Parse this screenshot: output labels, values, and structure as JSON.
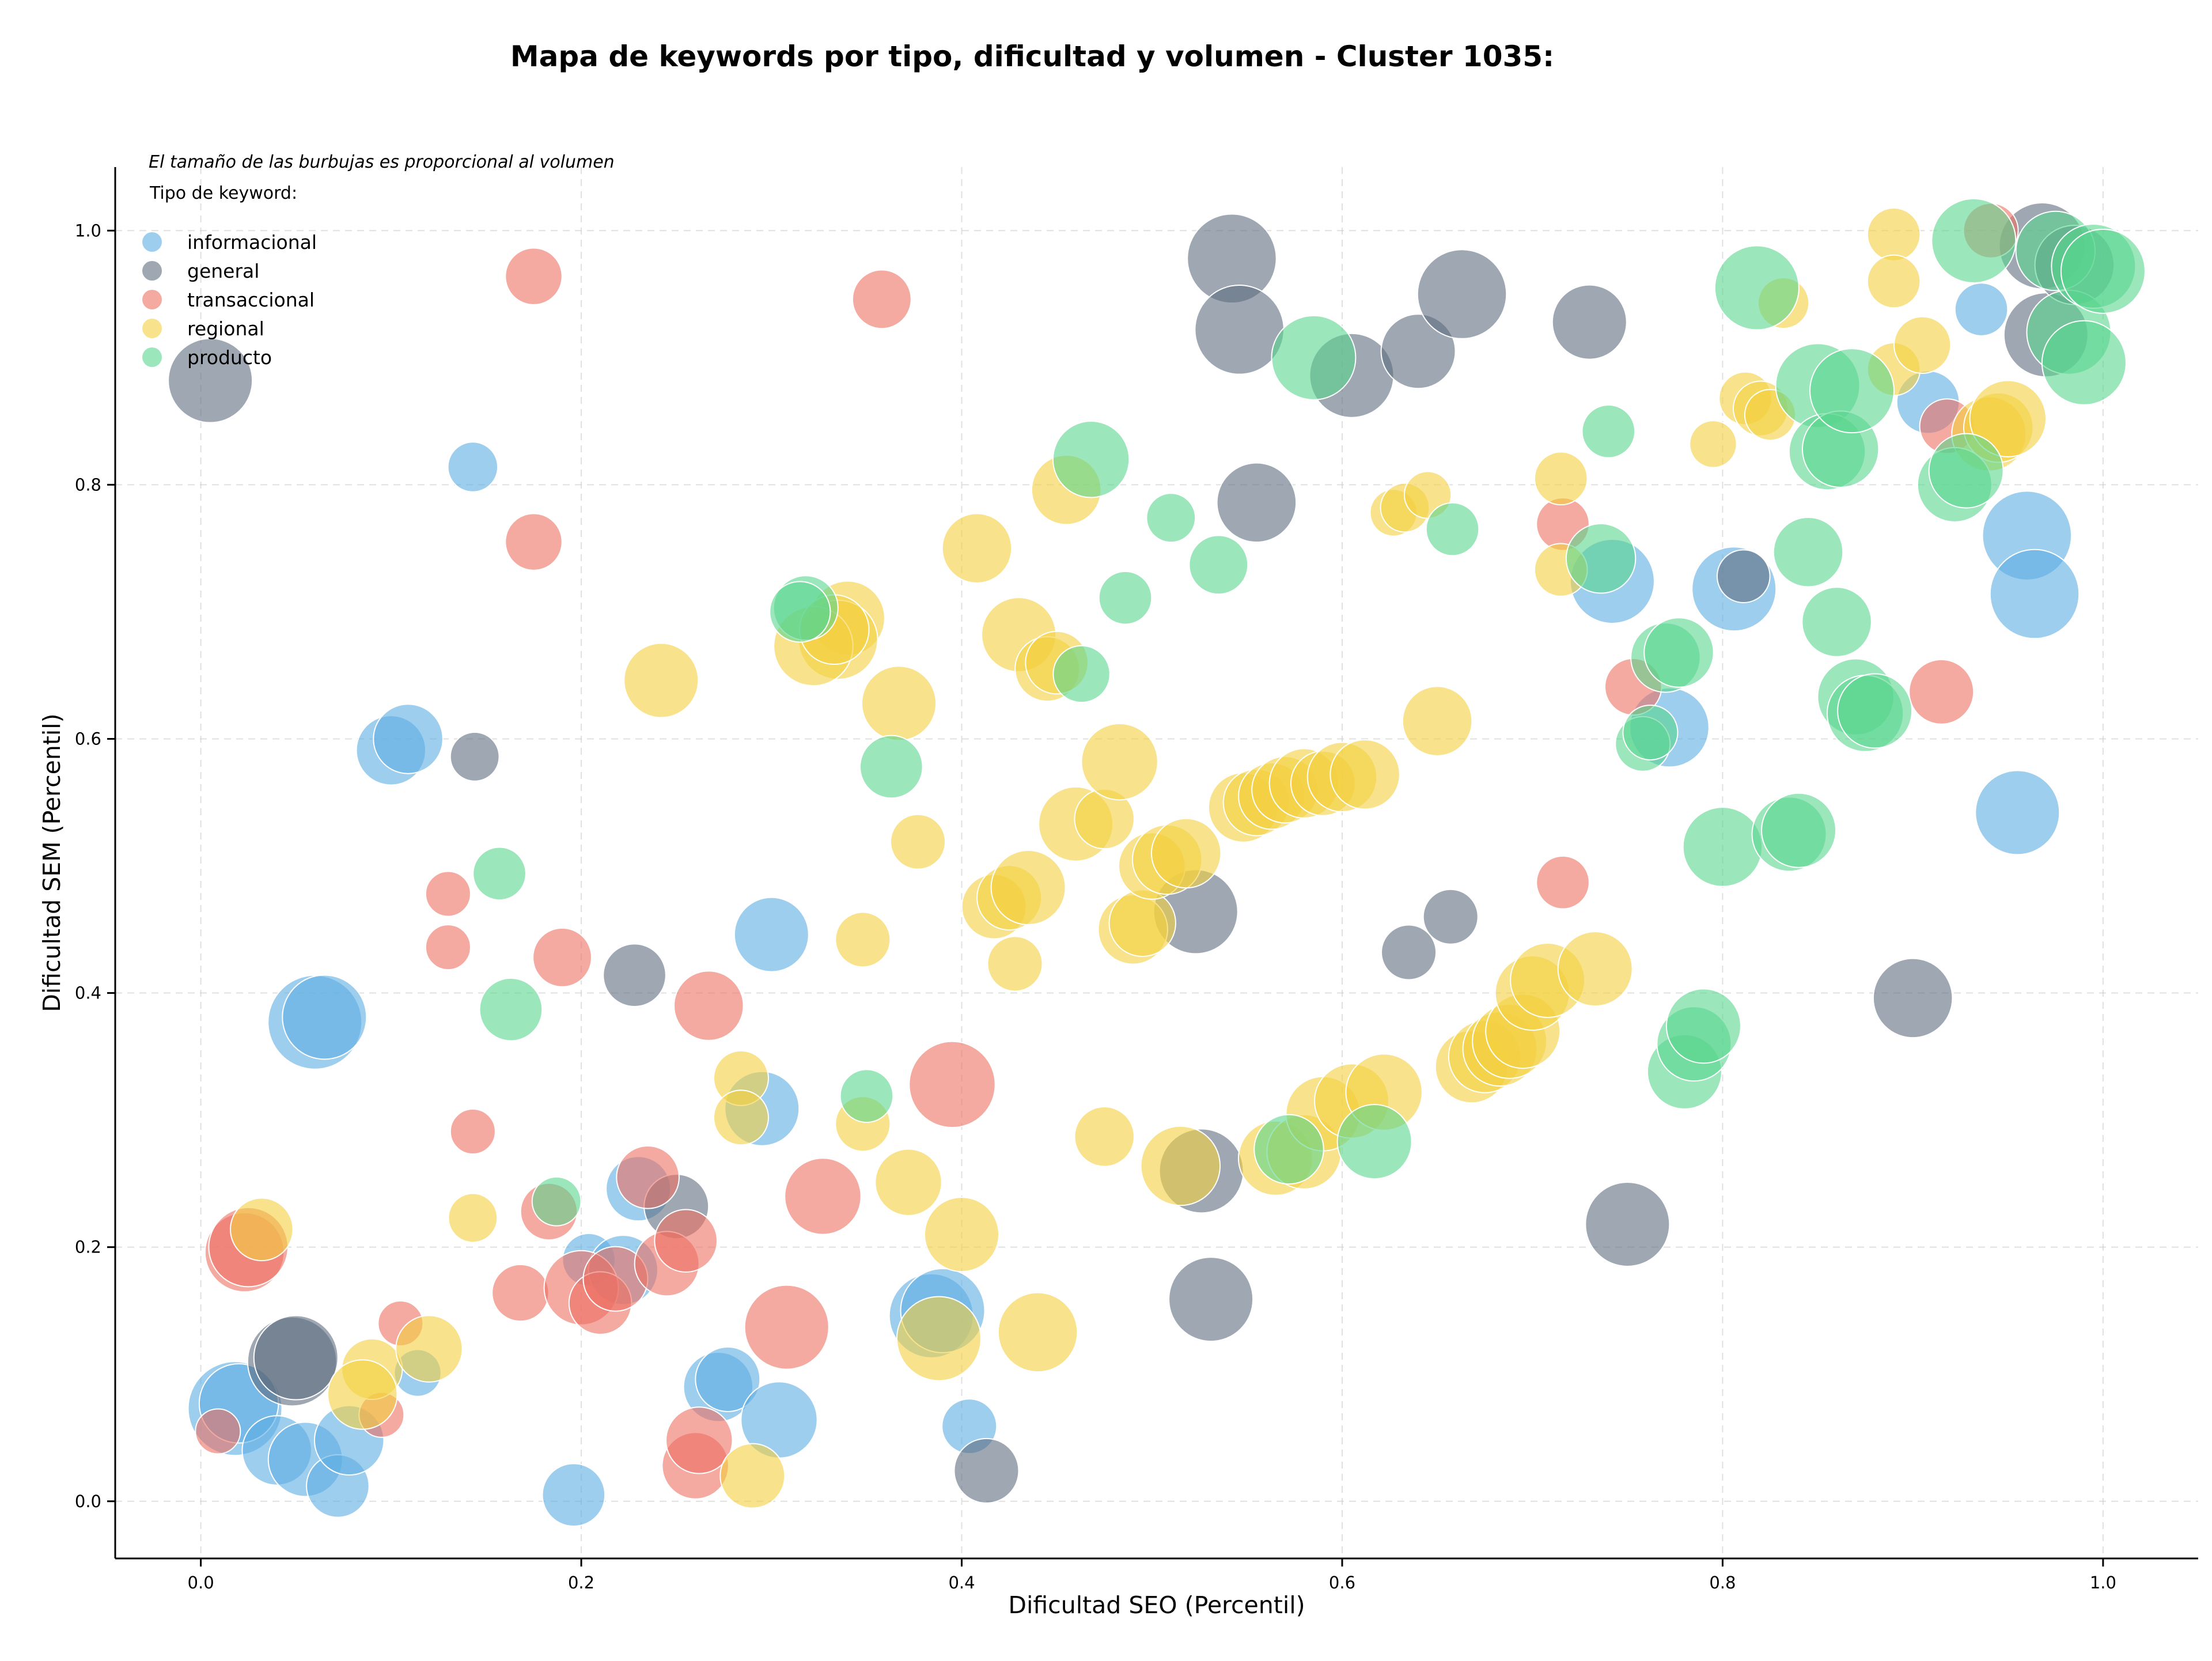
{
  "chart_data": {
    "type": "scatter",
    "title": "Mapa de keywords por tipo, dificultad y volumen - Cluster 1035:",
    "xlabel": "Dificultad SEO (Percentil)",
    "ylabel": "Dificultad SEM (Percentil)",
    "xlim": [
      -0.045,
      1.05
    ],
    "ylim": [
      -0.045,
      1.05
    ],
    "xticks": [
      0.0,
      0.2,
      0.4,
      0.6,
      0.8,
      1.0
    ],
    "yticks": [
      0.0,
      0.2,
      0.4,
      0.6,
      0.8,
      1.0
    ],
    "xtick_labels": [
      "0.0",
      "0.2",
      "0.4",
      "0.6",
      "0.8",
      "1.0"
    ],
    "ytick_labels": [
      "0.0",
      "0.2",
      "0.4",
      "0.6",
      "0.8",
      "1.0"
    ],
    "grid": true,
    "annotation": "El tamaño de las burbujas es proporcional al volumen",
    "legend_title": "Tipo de keyword:",
    "legend_position": "top-left",
    "series": [
      {
        "name": "informacional",
        "color": "#5dade2",
        "points": [
          [
            0.143,
            0.814,
            0.25
          ],
          [
            0.1,
            0.591,
            0.45
          ],
          [
            0.109,
            0.6,
            0.45
          ],
          [
            0.06,
            0.377,
            0.7
          ],
          [
            0.065,
            0.381,
            0.6
          ],
          [
            0.018,
            0.073,
            0.7
          ],
          [
            0.02,
            0.077,
            0.55
          ],
          [
            0.04,
            0.04,
            0.45
          ],
          [
            0.055,
            0.033,
            0.5
          ],
          [
            0.072,
            0.012,
            0.38
          ],
          [
            0.078,
            0.048,
            0.45
          ],
          [
            0.114,
            0.101,
            0.22
          ],
          [
            0.196,
            0.005,
            0.38
          ],
          [
            0.204,
            0.19,
            0.28
          ],
          [
            0.23,
            0.246,
            0.4
          ],
          [
            0.222,
            0.182,
            0.45
          ],
          [
            0.272,
            0.09,
            0.45
          ],
          [
            0.277,
            0.096,
            0.4
          ],
          [
            0.295,
            0.309,
            0.5
          ],
          [
            0.3,
            0.446,
            0.5
          ],
          [
            0.304,
            0.064,
            0.52
          ],
          [
            0.384,
            0.146,
            0.6
          ],
          [
            0.39,
            0.15,
            0.6
          ],
          [
            0.404,
            0.059,
            0.3
          ],
          [
            0.742,
            0.724,
            0.6
          ],
          [
            0.772,
            0.609,
            0.55
          ],
          [
            0.806,
            0.718,
            0.6
          ],
          [
            0.908,
            0.865,
            0.38
          ],
          [
            0.936,
            0.938,
            0.28
          ],
          [
            0.96,
            0.76,
            0.65
          ],
          [
            0.964,
            0.714,
            0.65
          ],
          [
            0.955,
            0.542,
            0.6
          ]
        ]
      },
      {
        "name": "general",
        "color": "#5d6d7e",
        "points": [
          [
            0.005,
            0.882,
            0.6
          ],
          [
            0.144,
            0.586,
            0.24
          ],
          [
            0.048,
            0.11,
            0.65
          ],
          [
            0.05,
            0.113,
            0.6
          ],
          [
            0.228,
            0.414,
            0.38
          ],
          [
            0.25,
            0.232,
            0.4
          ],
          [
            0.413,
            0.024,
            0.4
          ],
          [
            0.523,
            0.464,
            0.6
          ],
          [
            0.526,
            0.26,
            0.6
          ],
          [
            0.531,
            0.159,
            0.6
          ],
          [
            0.542,
            0.978,
            0.65
          ],
          [
            0.546,
            0.922,
            0.65
          ],
          [
            0.555,
            0.786,
            0.55
          ],
          [
            0.605,
            0.886,
            0.6
          ],
          [
            0.64,
            0.905,
            0.5
          ],
          [
            0.663,
            0.95,
            0.65
          ],
          [
            0.635,
            0.432,
            0.3
          ],
          [
            0.657,
            0.46,
            0.3
          ],
          [
            0.73,
            0.928,
            0.5
          ],
          [
            0.75,
            0.218,
            0.6
          ],
          [
            0.811,
            0.728,
            0.28
          ],
          [
            0.9,
            0.396,
            0.55
          ],
          [
            0.968,
            0.988,
            0.62
          ],
          [
            0.97,
            0.918,
            0.6
          ],
          [
            0.985,
            0.973,
            0.55
          ]
        ]
      },
      {
        "name": "transaccional",
        "color": "#ec7063",
        "points": [
          [
            0.175,
            0.964,
            0.32
          ],
          [
            0.358,
            0.946,
            0.34
          ],
          [
            0.175,
            0.755,
            0.32
          ],
          [
            0.13,
            0.478,
            0.2
          ],
          [
            0.13,
            0.436,
            0.2
          ],
          [
            0.19,
            0.428,
            0.34
          ],
          [
            0.143,
            0.291,
            0.2
          ],
          [
            0.183,
            0.228,
            0.32
          ],
          [
            0.168,
            0.164,
            0.32
          ],
          [
            0.2,
            0.168,
            0.5
          ],
          [
            0.21,
            0.156,
            0.38
          ],
          [
            0.218,
            0.175,
            0.4
          ],
          [
            0.235,
            0.255,
            0.38
          ],
          [
            0.245,
            0.187,
            0.4
          ],
          [
            0.255,
            0.205,
            0.38
          ],
          [
            0.267,
            0.39,
            0.45
          ],
          [
            0.26,
            0.028,
            0.42
          ],
          [
            0.262,
            0.048,
            0.42
          ],
          [
            0.308,
            0.137,
            0.6
          ],
          [
            0.327,
            0.24,
            0.52
          ],
          [
            0.395,
            0.328,
            0.62
          ],
          [
            0.023,
            0.196,
            0.55
          ],
          [
            0.025,
            0.2,
            0.55
          ],
          [
            0.105,
            0.14,
            0.2
          ],
          [
            0.095,
            0.068,
            0.2
          ],
          [
            0.009,
            0.055,
            0.2
          ],
          [
            0.716,
            0.769,
            0.28
          ],
          [
            0.716,
            0.487,
            0.28
          ],
          [
            0.753,
            0.641,
            0.32
          ],
          [
            0.915,
            0.637,
            0.4
          ],
          [
            0.918,
            0.846,
            0.3
          ],
          [
            0.941,
            1.0,
            0.3
          ]
        ]
      },
      {
        "name": "regional",
        "color": "#f4d03f",
        "points": [
          [
            0.032,
            0.214,
            0.38
          ],
          [
            0.09,
            0.104,
            0.36
          ],
          [
            0.085,
            0.084,
            0.45
          ],
          [
            0.12,
            0.12,
            0.42
          ],
          [
            0.143,
            0.223,
            0.24
          ],
          [
            0.242,
            0.646,
            0.5
          ],
          [
            0.284,
            0.333,
            0.3
          ],
          [
            0.284,
            0.302,
            0.3
          ],
          [
            0.29,
            0.02,
            0.4
          ],
          [
            0.348,
            0.442,
            0.3
          ],
          [
            0.348,
            0.297,
            0.3
          ],
          [
            0.372,
            0.251,
            0.42
          ],
          [
            0.377,
            0.519,
            0.3
          ],
          [
            0.4,
            0.21,
            0.5
          ],
          [
            0.388,
            0.128,
            0.6
          ],
          [
            0.34,
            0.695,
            0.5
          ],
          [
            0.335,
            0.678,
            0.55
          ],
          [
            0.322,
            0.673,
            0.55
          ],
          [
            0.333,
            0.686,
            0.45
          ],
          [
            0.367,
            0.628,
            0.5
          ],
          [
            0.408,
            0.75,
            0.45
          ],
          [
            0.43,
            0.682,
            0.5
          ],
          [
            0.445,
            0.655,
            0.4
          ],
          [
            0.45,
            0.66,
            0.38
          ],
          [
            0.455,
            0.796,
            0.45
          ],
          [
            0.417,
            0.468,
            0.4
          ],
          [
            0.425,
            0.475,
            0.4
          ],
          [
            0.428,
            0.423,
            0.3
          ],
          [
            0.435,
            0.483,
            0.5
          ],
          [
            0.44,
            0.133,
            0.55
          ],
          [
            0.46,
            0.533,
            0.5
          ],
          [
            0.475,
            0.537,
            0.35
          ],
          [
            0.483,
            0.582,
            0.52
          ],
          [
            0.475,
            0.287,
            0.35
          ],
          [
            0.49,
            0.45,
            0.45
          ],
          [
            0.495,
            0.455,
            0.42
          ],
          [
            0.5,
            0.5,
            0.42
          ],
          [
            0.508,
            0.505,
            0.45
          ],
          [
            0.518,
            0.51,
            0.45
          ],
          [
            0.515,
            0.264,
            0.55
          ],
          [
            0.548,
            0.546,
            0.45
          ],
          [
            0.555,
            0.55,
            0.42
          ],
          [
            0.563,
            0.555,
            0.42
          ],
          [
            0.57,
            0.56,
            0.42
          ],
          [
            0.58,
            0.565,
            0.45
          ],
          [
            0.59,
            0.565,
            0.4
          ],
          [
            0.6,
            0.57,
            0.45
          ],
          [
            0.612,
            0.572,
            0.45
          ],
          [
            0.565,
            0.27,
            0.5
          ],
          [
            0.58,
            0.275,
            0.5
          ],
          [
            0.59,
            0.305,
            0.5
          ],
          [
            0.605,
            0.315,
            0.5
          ],
          [
            0.622,
            0.322,
            0.52
          ],
          [
            0.627,
            0.778,
            0.22
          ],
          [
            0.633,
            0.782,
            0.24
          ],
          [
            0.645,
            0.792,
            0.22
          ],
          [
            0.65,
            0.614,
            0.45
          ],
          [
            0.668,
            0.342,
            0.48
          ],
          [
            0.675,
            0.35,
            0.48
          ],
          [
            0.683,
            0.356,
            0.5
          ],
          [
            0.688,
            0.362,
            0.5
          ],
          [
            0.695,
            0.37,
            0.5
          ],
          [
            0.7,
            0.4,
            0.5
          ],
          [
            0.708,
            0.41,
            0.5
          ],
          [
            0.715,
            0.805,
            0.28
          ],
          [
            0.715,
            0.733,
            0.28
          ],
          [
            0.733,
            0.419,
            0.5
          ],
          [
            0.795,
            0.832,
            0.22
          ],
          [
            0.812,
            0.868,
            0.28
          ],
          [
            0.82,
            0.86,
            0.3
          ],
          [
            0.825,
            0.855,
            0.26
          ],
          [
            0.832,
            0.943,
            0.26
          ],
          [
            0.89,
            0.997,
            0.28
          ],
          [
            0.89,
            0.96,
            0.28
          ],
          [
            0.89,
            0.891,
            0.28
          ],
          [
            0.905,
            0.91,
            0.32
          ],
          [
            0.94,
            0.84,
            0.5
          ],
          [
            0.945,
            0.845,
            0.45
          ],
          [
            0.95,
            0.852,
            0.52
          ]
        ]
      },
      {
        "name": "producto",
        "color": "#58d68d",
        "points": [
          [
            0.157,
            0.494,
            0.28
          ],
          [
            0.163,
            0.387,
            0.38
          ],
          [
            0.187,
            0.236,
            0.24
          ],
          [
            0.318,
            0.703,
            0.4
          ],
          [
            0.315,
            0.7,
            0.36
          ],
          [
            0.35,
            0.319,
            0.28
          ],
          [
            0.363,
            0.578,
            0.38
          ],
          [
            0.463,
            0.651,
            0.32
          ],
          [
            0.468,
            0.82,
            0.52
          ],
          [
            0.486,
            0.711,
            0.28
          ],
          [
            0.51,
            0.774,
            0.24
          ],
          [
            0.535,
            0.737,
            0.34
          ],
          [
            0.572,
            0.277,
            0.45
          ],
          [
            0.585,
            0.9,
            0.6
          ],
          [
            0.617,
            0.283,
            0.5
          ],
          [
            0.658,
            0.765,
            0.28
          ],
          [
            0.736,
            0.742,
            0.45
          ],
          [
            0.74,
            0.842,
            0.28
          ],
          [
            0.758,
            0.596,
            0.3
          ],
          [
            0.762,
            0.605,
            0.3
          ],
          [
            0.77,
            0.664,
            0.45
          ],
          [
            0.777,
            0.668,
            0.45
          ],
          [
            0.78,
            0.338,
            0.5
          ],
          [
            0.785,
            0.36,
            0.5
          ],
          [
            0.79,
            0.374,
            0.5
          ],
          [
            0.8,
            0.515,
            0.55
          ],
          [
            0.818,
            0.955,
            0.6
          ],
          [
            0.835,
            0.525,
            0.5
          ],
          [
            0.84,
            0.528,
            0.5
          ],
          [
            0.845,
            0.747,
            0.45
          ],
          [
            0.86,
            0.692,
            0.45
          ],
          [
            0.85,
            0.878,
            0.6
          ],
          [
            0.855,
            0.826,
            0.52
          ],
          [
            0.862,
            0.828,
            0.52
          ],
          [
            0.868,
            0.874,
            0.6
          ],
          [
            0.87,
            0.633,
            0.52
          ],
          [
            0.875,
            0.62,
            0.52
          ],
          [
            0.88,
            0.622,
            0.5
          ],
          [
            0.922,
            0.8,
            0.5
          ],
          [
            0.928,
            0.811,
            0.5
          ],
          [
            0.932,
            0.992,
            0.6
          ],
          [
            0.975,
            0.984,
            0.55
          ],
          [
            0.982,
            0.92,
            0.6
          ],
          [
            0.99,
            0.896,
            0.6
          ],
          [
            0.995,
            0.972,
            0.6
          ],
          [
            1.0,
            0.968,
            0.6
          ]
        ]
      }
    ]
  }
}
